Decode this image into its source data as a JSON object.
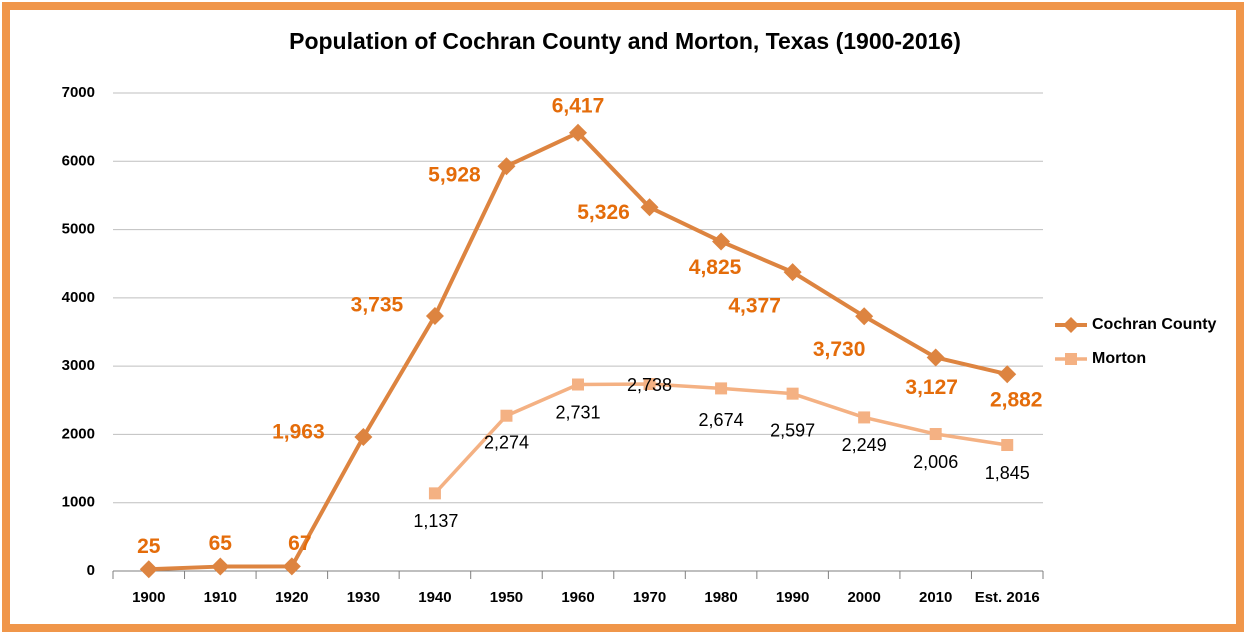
{
  "chart_data": {
    "type": "line",
    "title": "Population of Cochran County and Morton, Texas (1900-2016)",
    "categories": [
      "1900",
      "1910",
      "1920",
      "1930",
      "1940",
      "1950",
      "1960",
      "1970",
      "1980",
      "1990",
      "2000",
      "2010",
      "Est. 2016"
    ],
    "series": [
      {
        "name": "Cochran County",
        "color": "#dd8440",
        "label_color": "#e46c0a",
        "marker": "diamond",
        "values": [
          25,
          65,
          67,
          1963,
          3735,
          5928,
          6417,
          5326,
          4825,
          4377,
          3730,
          3127,
          2882
        ],
        "value_labels": [
          "25",
          "65",
          "67",
          "1,963",
          "3,735",
          "5,928",
          "6,417",
          "5,326",
          "4,825",
          "4,377",
          "3,730",
          "3,127",
          "2,882"
        ]
      },
      {
        "name": "Morton",
        "color": "#f4b183",
        "label_color": "#000000",
        "marker": "square",
        "values": [
          null,
          null,
          null,
          null,
          1137,
          2274,
          2731,
          2738,
          2674,
          2597,
          2249,
          2006,
          1845
        ],
        "value_labels": [
          null,
          null,
          null,
          null,
          "1,137",
          "2,274",
          "2,731",
          "2,738",
          "2,674",
          "2,597",
          "2,249",
          "2,006",
          "1,845"
        ]
      }
    ],
    "ylim": [
      0,
      7000
    ],
    "yticks": [
      0,
      1000,
      2000,
      3000,
      4000,
      5000,
      6000,
      7000
    ],
    "grid": true,
    "legend": "right"
  }
}
